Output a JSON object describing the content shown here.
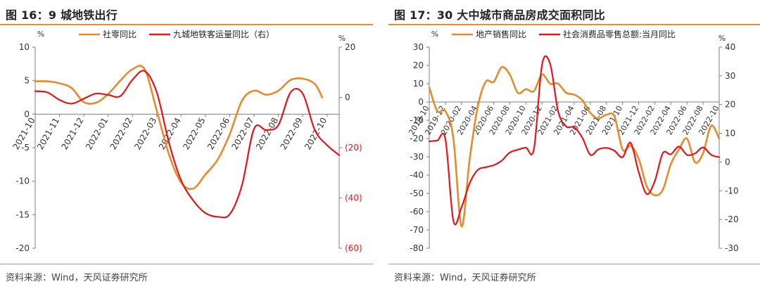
{
  "colors": {
    "orange": "#E98B2C",
    "red": "#E8141B",
    "axis": "#7f7f7f",
    "accent_rule": "#E98B2C"
  },
  "panels": [
    {
      "title": "图 16：9 城地铁出行",
      "source": "资料来源：Wind，天风证券研究所"
    },
    {
      "title": "图 17：30 大中城市商品房成交面积同比",
      "source": "资料来源：Wind，天风证券研究所"
    }
  ],
  "chart_data": [
    {
      "type": "line",
      "title": "图 16：9 城地铁出行",
      "left_unit": "%",
      "right_unit": "%",
      "ylim": [
        -20,
        10
      ],
      "y_ticks": [
        10,
        5,
        0,
        -5,
        -10,
        -15,
        -20
      ],
      "y2lim": [
        -60,
        20
      ],
      "y2_ticks": [
        "20",
        "0",
        "(20)",
        "(40)",
        "(60)"
      ],
      "y2_tick_values": [
        20,
        0,
        -20,
        -40,
        -60
      ],
      "x_ticks": [
        "2021-10",
        "2021-11",
        "2021-12",
        "2022-01",
        "2022-02",
        "2022-03",
        "2022-04",
        "2022-05",
        "2022-06",
        "2022-07",
        "2022-08",
        "2022-09",
        "2022-10"
      ],
      "xlim": [
        0,
        12.5
      ],
      "legend_position": "top",
      "series": [
        {
          "name": "社零同比",
          "axis": "left",
          "color": "#E98B2C",
          "x": [
            0,
            0.5,
            1,
            1.5,
            2,
            2.5,
            3,
            3.5,
            4,
            4.5,
            5,
            5.5,
            6,
            6.5,
            7,
            7.5,
            8,
            8.5,
            9,
            9.5,
            10,
            10.5,
            11,
            11.5,
            11.8
          ],
          "values": [
            4.9,
            4.9,
            4.6,
            3.9,
            1.8,
            1.7,
            3.0,
            5.0,
            6.7,
            6.7,
            0.5,
            -6.0,
            -10.2,
            -11.1,
            -9.0,
            -6.8,
            -3.0,
            2.0,
            3.5,
            2.9,
            3.5,
            5.1,
            5.3,
            4.5,
            2.5
          ]
        },
        {
          "name": "九城地铁客运量同比（右）",
          "axis": "right",
          "color": "#E8141B",
          "x": [
            0,
            0.5,
            1,
            1.5,
            2,
            2.5,
            3,
            3.5,
            4,
            4.5,
            5,
            5.5,
            6,
            6.5,
            7,
            7.5,
            8,
            8.5,
            9,
            9.5,
            10,
            10.5,
            11,
            11.5,
            12,
            12.5
          ],
          "values": [
            2.5,
            2.0,
            -1.0,
            -2.5,
            -0.5,
            1.5,
            1.0,
            0.5,
            7.0,
            10.5,
            2.0,
            -18.0,
            -33.0,
            -41.0,
            -46.0,
            -47.5,
            -46.5,
            -35.0,
            -12.5,
            -13.0,
            -11.0,
            2.0,
            1.5,
            -13.0,
            -19.0,
            -23.0
          ]
        }
      ]
    },
    {
      "type": "line",
      "title": "图 17：30 大中城市商品房成交面积同比",
      "left_unit": "%",
      "right_unit": "%",
      "ylim": [
        -80,
        30
      ],
      "y_ticks": [
        30,
        20,
        10,
        0,
        -10,
        -20,
        -30,
        -40,
        -50,
        -60,
        -70,
        -80
      ],
      "y2lim": [
        -30,
        40
      ],
      "y2_ticks": [
        40,
        30,
        20,
        10,
        0,
        -10,
        -20,
        -30
      ],
      "x_ticks": [
        "2019-10",
        "2019-12",
        "2020-02",
        "2020-04",
        "2020-06",
        "2020-08",
        "2020-10",
        "2020-12",
        "2021-02",
        "2021-04",
        "2021-06",
        "2021-08",
        "2021-10",
        "2021-12",
        "2022-02",
        "2022-04",
        "2022-06",
        "2022-08",
        "2022-10"
      ],
      "xlim": [
        0,
        36
      ],
      "legend_position": "top",
      "series": [
        {
          "name": "地产销售同比",
          "axis": "left",
          "color": "#E98B2C",
          "x": [
            0,
            1,
            2,
            3,
            4,
            5,
            6,
            7,
            8,
            9,
            10,
            11,
            12,
            13,
            14,
            15,
            16,
            17,
            18,
            19,
            20,
            21,
            22,
            23,
            24,
            25,
            26,
            27,
            28,
            29,
            30,
            31,
            32,
            33,
            34,
            35,
            36
          ],
          "values": [
            8,
            -5,
            -5,
            -20,
            -68,
            -32,
            -3,
            11,
            11,
            19,
            15,
            5,
            7,
            6,
            15,
            10,
            10,
            5,
            4,
            1,
            -6,
            -9,
            -7,
            -8,
            -26,
            -24,
            -31,
            -46,
            -51,
            -48,
            -34,
            -26,
            -20,
            -33,
            -28,
            -13,
            -20
          ]
        },
        {
          "name": "社会消费品零售总额:当月同比",
          "axis": "right",
          "color": "#E8141B",
          "x": [
            0,
            1,
            2,
            3,
            4,
            5,
            6,
            7,
            8,
            9,
            10,
            11,
            12,
            13,
            14,
            15,
            16,
            17,
            18,
            19,
            20,
            21,
            22,
            23,
            24,
            25,
            26,
            27,
            28,
            29,
            30,
            31,
            32,
            33,
            34,
            35,
            36
          ],
          "values": [
            7.2,
            7.5,
            8.0,
            -20.5,
            -15.8,
            -7.5,
            -2.8,
            -1.8,
            -1.1,
            0.5,
            3.3,
            4.3,
            5.0,
            4.6,
            33.8,
            34.2,
            17.7,
            12.4,
            12.1,
            8.5,
            2.5,
            4.4,
            4.9,
            3.9,
            1.7,
            6.7,
            -3.5,
            -11.1,
            -6.7,
            3.1,
            2.7,
            5.4,
            2.5,
            3.0,
            5.1,
            2.5,
            1.7
          ]
        }
      ]
    }
  ]
}
